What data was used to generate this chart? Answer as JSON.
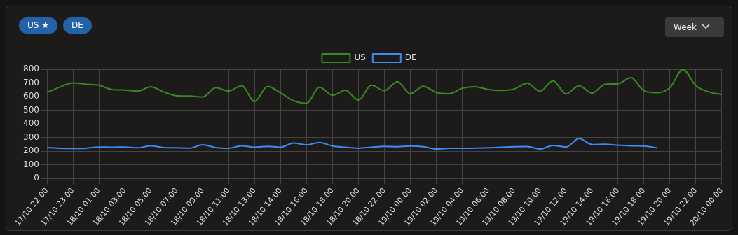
{
  "chart_data": {
    "type": "line",
    "categories": [
      "17/10 22:00",
      null,
      "17/10 23:00",
      null,
      "18/10 01:00",
      null,
      "18/10 03:00",
      null,
      "18/10 05:00",
      null,
      "18/10 07:00",
      null,
      "18/10 09:00",
      null,
      "18/10 11:00",
      null,
      "18/10 13:00",
      null,
      "18/10 14:00",
      null,
      "18/10 16:00",
      null,
      "18/10 18:00",
      null,
      "18/10 20:00",
      null,
      "18/10 22:00",
      null,
      "19/10 00:00",
      null,
      "19/10 02:00",
      null,
      "19/10 04:00",
      null,
      "19/10 06:00",
      null,
      "19/10 08:00",
      null,
      "19/10 10:00",
      null,
      "19/10 12:00",
      null,
      "19/10 14:00",
      null,
      "19/10 16:00",
      null,
      "19/10 18:00",
      null,
      "19/10 20:00",
      null,
      "19/10 22:00",
      null,
      "20/10 00:00"
    ],
    "series": [
      {
        "name": "US",
        "color": "#3a8a22",
        "values": [
          630,
          670,
          700,
          690,
          683,
          652,
          648,
          640,
          672,
          634,
          606,
          604,
          597,
          665,
          641,
          680,
          564,
          674,
          628,
          570,
          551,
          670,
          610,
          646,
          575,
          683,
          643,
          709,
          621,
          676,
          630,
          621,
          661,
          672,
          652,
          645,
          656,
          698,
          639,
          716,
          619,
          680,
          625,
          690,
          694,
          738,
          643,
          628,
          665,
          798,
          680,
          634,
          615
        ]
      },
      {
        "name": "DE",
        "color": "#3d8af7",
        "values": [
          227,
          222,
          220,
          222,
          231,
          229,
          231,
          225,
          240,
          227,
          225,
          223,
          247,
          227,
          222,
          240,
          229,
          236,
          229,
          260,
          247,
          264,
          238,
          229,
          222,
          229,
          236,
          233,
          238,
          233,
          216,
          222,
          222,
          223,
          225,
          229,
          233,
          234,
          216,
          242,
          231,
          293,
          249,
          251,
          244,
          240,
          238,
          225,
          null,
          null,
          null,
          null,
          null
        ]
      }
    ],
    "ylim": [
      0,
      800
    ],
    "yticks": [
      0,
      100,
      200,
      300,
      400,
      500,
      600,
      700,
      800
    ],
    "grid": true,
    "legend": "top",
    "marker": "none",
    "line_style": "solid",
    "annotations": [
      "US ★",
      "DE",
      "Week"
    ]
  }
}
